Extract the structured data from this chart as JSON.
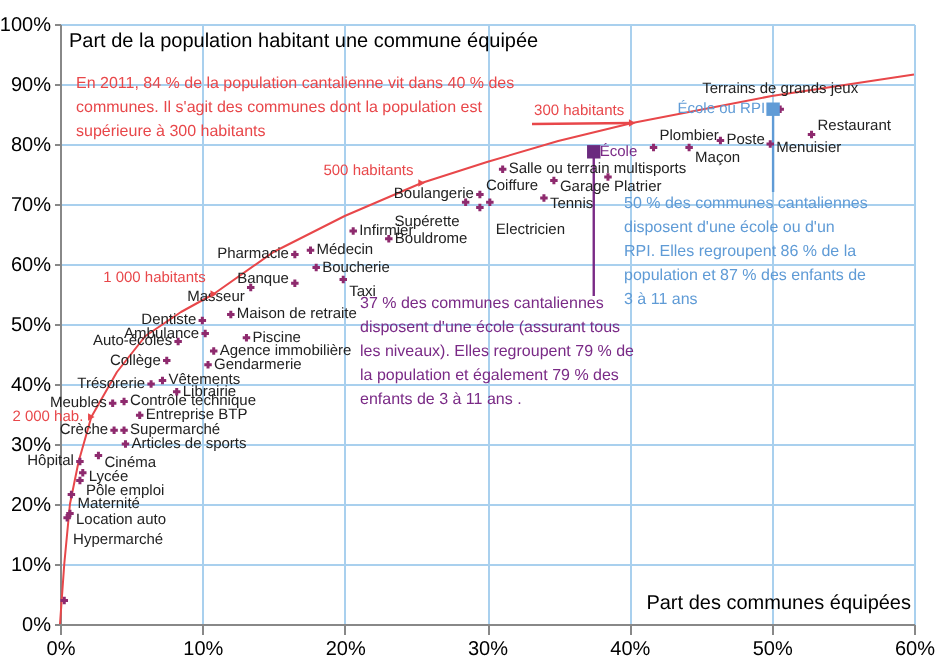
{
  "chart_data": {
    "type": "scatter",
    "xlabel": "Part des communes équipées",
    "ylabel": "Part de la population habitant une commune équipée",
    "xlim": [
      0,
      60
    ],
    "ylim": [
      0,
      100
    ],
    "xticks": [
      {
        "value": 0,
        "label": "0%"
      },
      {
        "value": 10,
        "label": "10%"
      },
      {
        "value": 20,
        "label": "20%"
      },
      {
        "value": 30,
        "label": "30%"
      },
      {
        "value": 40,
        "label": "40%"
      },
      {
        "value": 50,
        "label": "50%"
      },
      {
        "value": 60,
        "label": "60%"
      }
    ],
    "yticks": [
      {
        "value": 0,
        "label": "0%"
      },
      {
        "value": 10,
        "label": "10%"
      },
      {
        "value": 20,
        "label": "20%"
      },
      {
        "value": 30,
        "label": "30%"
      },
      {
        "value": 40,
        "label": "40%"
      },
      {
        "value": 50,
        "label": "50%"
      },
      {
        "value": 60,
        "label": "60%"
      },
      {
        "value": 70,
        "label": "70%"
      },
      {
        "value": 80,
        "label": "80%"
      },
      {
        "value": 90,
        "label": "90%"
      },
      {
        "value": 100,
        "label": "100%"
      }
    ],
    "grid": true,
    "series": [
      {
        "type": "line",
        "color": "#e8474a",
        "marker": "none",
        "line_style": "solid",
        "x": [
          0,
          0.3,
          0.7,
          1.3,
          2.2,
          4,
          6,
          8.5,
          10.8,
          15,
          20,
          25.4,
          30,
          35,
          40.2,
          50,
          60
        ],
        "values": [
          0,
          10,
          20,
          27,
          34.5,
          42,
          48,
          52,
          55,
          62,
          68,
          73.5,
          77,
          80.5,
          83.5,
          88,
          91.6
        ]
      },
      {
        "type": "scatter",
        "color": "#e8474a",
        "marker": "triangle",
        "x": [
          2.2,
          10.8,
          25.4,
          40.2
        ],
        "values": [
          34.5,
          55,
          73.5,
          83.5
        ]
      },
      {
        "type": "scatter",
        "color": "#8e2a6e",
        "marker": "cross",
        "x": [
          29.5,
          29.5,
          28.5,
          30.2,
          31.1,
          34.7,
          34.0,
          38.5,
          41.7,
          44.2,
          46.4,
          49.9,
          52.8,
          50.6,
          20.6,
          17.6,
          23.1,
          16.5,
          18.0,
          19.9,
          13.4,
          16.5,
          10.0,
          12.0,
          10.2,
          13.1,
          10.8,
          8.3,
          7.5,
          10.4,
          6.4,
          7.2,
          8.2,
          3.7,
          4.5,
          5.6,
          3.8,
          4.5,
          4.6,
          1.4,
          2.7,
          1.6,
          1.4,
          0.8,
          0.7,
          0.5,
          0.3
        ],
        "values": [
          71.6,
          69.4,
          70.3,
          70.3,
          75.8,
          73.9,
          71.0,
          74.5,
          79.4,
          79.4,
          80.6,
          80.0,
          81.6,
          85.8,
          65.5,
          62.3,
          64.2,
          61.6,
          59.4,
          57.4,
          56.1,
          56.8,
          50.6,
          51.6,
          48.4,
          47.7,
          45.5,
          47.1,
          43.9,
          43.2,
          40.0,
          40.6,
          38.7,
          36.8,
          37.1,
          34.8,
          32.3,
          32.3,
          30.0,
          27.1,
          28.1,
          25.2,
          23.9,
          21.6,
          18.4,
          17.7,
          3.9
        ]
      },
      {
        "type": "scatter",
        "color": "#6a2a7e",
        "marker": "square",
        "x": [
          37.5
        ],
        "values": [
          78.7
        ]
      },
      {
        "type": "scatter",
        "color": "#5f9bd6",
        "marker": "square",
        "x": [
          50.1
        ],
        "values": [
          85.8
        ]
      }
    ],
    "annotations": [
      {
        "text": "En 2011, 84 % de la population cantalienne vit dans 40 % des communes. Il s'agit des communes dont la population est supérieure à 300 habitants",
        "x": 40.2,
        "y": 83.5
      },
      {
        "text": "37 % des communes cantaliennes disposent d'une école (assurant tous les niveaux). Elles regroupent 79 % de la population et également 79 % des enfants de 3 à 11 ans .",
        "x": 37.5,
        "y": 78.7
      },
      {
        "text": "50 % des communes cantaliennes disposent d'une école ou d'un RPI. Elles regroupent 86 % de la population et 87 % des enfants de 3 à 11 ans",
        "x": 50.1,
        "y": 85.8
      },
      {
        "text": "300 habitants",
        "x": 40.2,
        "y": 83.5
      },
      {
        "text": "500 habitants",
        "x": 25.4,
        "y": 73.5
      },
      {
        "text": "1 000 habitants",
        "x": 10.8,
        "y": 55
      },
      {
        "text": "2 000 hab.",
        "x": 2.2,
        "y": 34.5
      },
      {
        "text": "Coiffure",
        "x": 29.5,
        "y": 71.6
      },
      {
        "text": "Boulangerie",
        "x": 29.5,
        "y": 69.4
      },
      {
        "text": "Supérette",
        "x": 28.5,
        "y": 70.3
      },
      {
        "text": "Electricien",
        "x": 30.2,
        "y": 70.3
      },
      {
        "text": "Salle ou terrain multisports",
        "x": 31.1,
        "y": 75.8
      },
      {
        "text": "Garage",
        "x": 34.7,
        "y": 73.9
      },
      {
        "text": "Tennis",
        "x": 34.0,
        "y": 71.0
      },
      {
        "text": "Platrier",
        "x": 38.5,
        "y": 74.5
      },
      {
        "text": "Plombier",
        "x": 41.7,
        "y": 79.4
      },
      {
        "text": "Maçon",
        "x": 44.2,
        "y": 79.4
      },
      {
        "text": "Poste",
        "x": 46.4,
        "y": 80.6
      },
      {
        "text": "Menuisier",
        "x": 49.9,
        "y": 80.0
      },
      {
        "text": "Restaurant",
        "x": 52.8,
        "y": 81.6
      },
      {
        "text": "Terrains de grands jeux",
        "x": 50.6,
        "y": 85.8
      },
      {
        "text": "École",
        "x": 37.5,
        "y": 78.7
      },
      {
        "text": "École ou RPI",
        "x": 50.1,
        "y": 85.8
      },
      {
        "text": "Infirmier",
        "x": 20.6,
        "y": 65.5
      },
      {
        "text": "Médecin",
        "x": 17.6,
        "y": 62.3
      },
      {
        "text": "Bouldrome",
        "x": 23.1,
        "y": 64.2
      },
      {
        "text": "Pharmacie",
        "x": 16.5,
        "y": 61.6
      },
      {
        "text": "Boucherie",
        "x": 18.0,
        "y": 59.4
      },
      {
        "text": "Taxi",
        "x": 19.9,
        "y": 57.4
      },
      {
        "text": "Masseur",
        "x": 13.4,
        "y": 56.1
      },
      {
        "text": "Banque",
        "x": 16.5,
        "y": 56.8
      },
      {
        "text": "Dentiste",
        "x": 10.0,
        "y": 50.6
      },
      {
        "text": "Maison de retraite",
        "x": 12.0,
        "y": 51.6
      },
      {
        "text": "Ambulance",
        "x": 10.2,
        "y": 48.4
      },
      {
        "text": "Piscine",
        "x": 13.1,
        "y": 47.7
      },
      {
        "text": "Agence immobilière",
        "x": 10.8,
        "y": 45.5
      },
      {
        "text": "Auto-écoles",
        "x": 8.3,
        "y": 47.1
      },
      {
        "text": "Collège",
        "x": 7.5,
        "y": 43.9
      },
      {
        "text": "Gendarmerie",
        "x": 10.4,
        "y": 43.2
      },
      {
        "text": "Trésorerie",
        "x": 6.4,
        "y": 40.0
      },
      {
        "text": "Vêtements",
        "x": 7.2,
        "y": 40.6
      },
      {
        "text": "Librairie",
        "x": 8.2,
        "y": 38.7
      },
      {
        "text": "Meubles",
        "x": 3.7,
        "y": 36.8
      },
      {
        "text": "Contrôle technique",
        "x": 4.5,
        "y": 37.1
      },
      {
        "text": "Entreprise BTP",
        "x": 5.6,
        "y": 34.8
      },
      {
        "text": "Crèche",
        "x": 3.8,
        "y": 32.3
      },
      {
        "text": "Supermarché",
        "x": 4.5,
        "y": 32.3
      },
      {
        "text": "Articles de sports",
        "x": 4.6,
        "y": 30.0
      },
      {
        "text": "Hôpital",
        "x": 1.4,
        "y": 27.1
      },
      {
        "text": "Cinéma",
        "x": 2.7,
        "y": 28.1
      },
      {
        "text": "Lycée",
        "x": 1.6,
        "y": 25.2
      },
      {
        "text": "Pôle emploi",
        "x": 1.4,
        "y": 23.9
      },
      {
        "text": "Maternité",
        "x": 0.8,
        "y": 21.6
      },
      {
        "text": "Location auto",
        "x": 0.7,
        "y": 18.4
      },
      {
        "text": "Hypermarché",
        "x": 0.5,
        "y": 17.7
      }
    ]
  }
}
